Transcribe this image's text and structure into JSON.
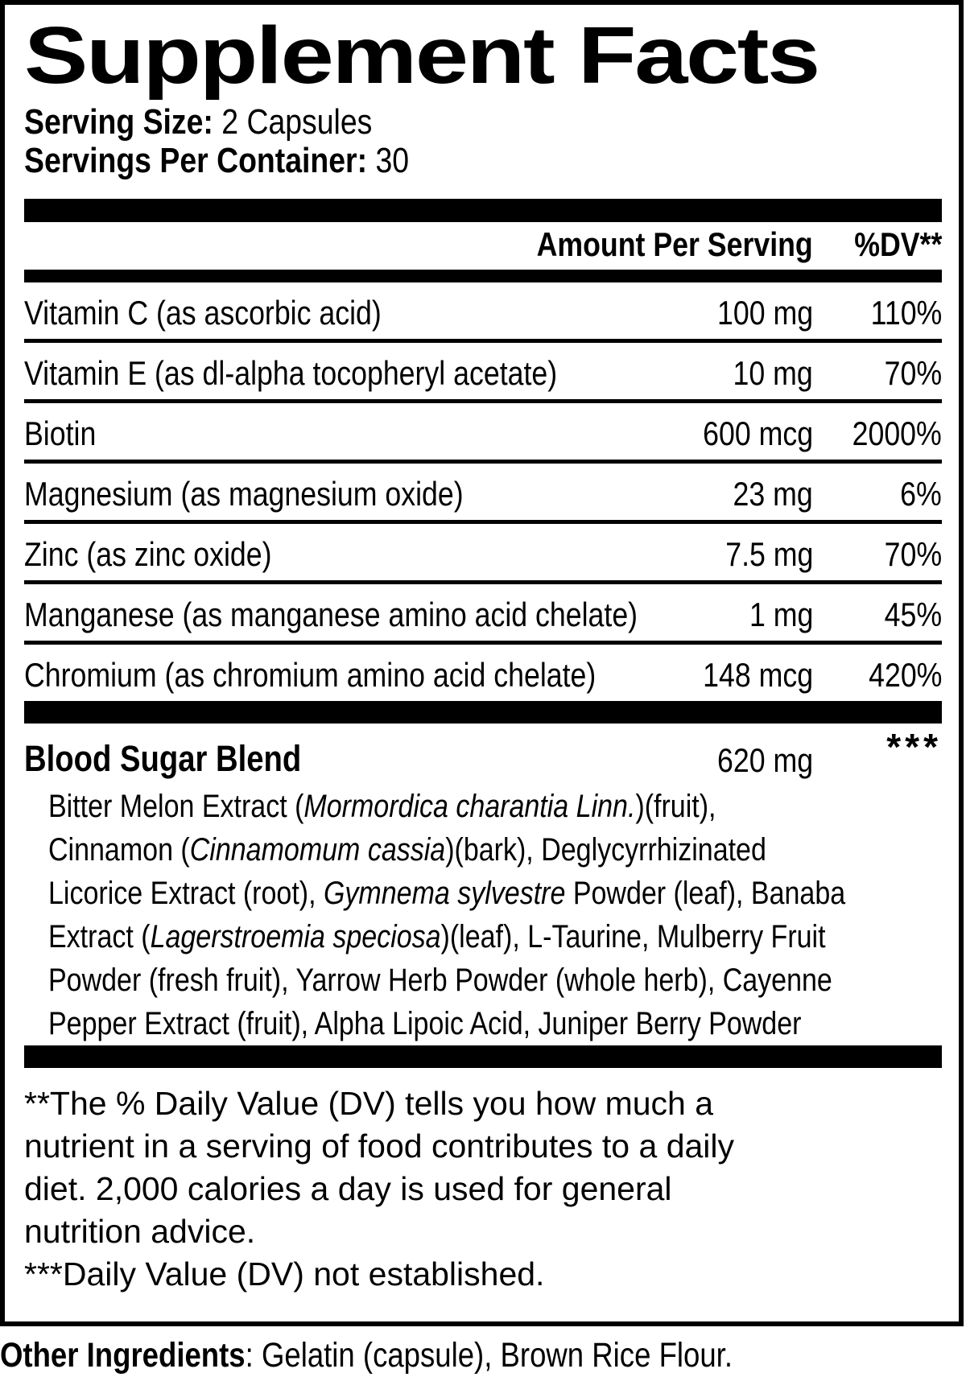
{
  "title": "Supplement Facts",
  "serving": {
    "size_label": "Serving Size:",
    "size_value": " 2 Capsules",
    "container_label": "Servings Per Container:",
    "container_value": " 30"
  },
  "table": {
    "header": {
      "amount": "Amount Per Serving",
      "dv": "%DV**"
    },
    "nutrients": [
      {
        "name": "Vitamin C (as ascorbic acid)",
        "amount": "100 mg",
        "dv": "110%"
      },
      {
        "name": "Vitamin E (as dl-alpha tocopheryl acetate)",
        "amount": "10 mg",
        "dv": "70%"
      },
      {
        "name": "Biotin",
        "amount": "600 mcg",
        "dv": "2000%"
      },
      {
        "name": "Magnesium (as magnesium oxide)",
        "amount": "23 mg",
        "dv": "6%"
      },
      {
        "name": "Zinc (as zinc oxide)",
        "amount": "7.5 mg",
        "dv": "70%"
      },
      {
        "name": "Manganese (as manganese amino acid chelate)",
        "amount": "1 mg",
        "dv": "45%"
      },
      {
        "name": "Chromium (as chromium amino acid chelate)",
        "amount": "148 mcg",
        "dv": "420%"
      }
    ],
    "blend": {
      "name": "Blood Sugar Blend",
      "amount": "620 mg",
      "dv": "***",
      "ingredient_lines": [
        [
          {
            "t": "Bitter Melon Extract ("
          },
          {
            "t": "Mormordica charantia Linn.",
            "i": true
          },
          {
            "t": ")(fruit),"
          }
        ],
        [
          {
            "t": "Cinnamon ("
          },
          {
            "t": "Cinnamomum cassia",
            "i": true
          },
          {
            "t": ")(bark), Deglycyrrhizinated"
          }
        ],
        [
          {
            "t": "Licorice Extract (root), "
          },
          {
            "t": "Gymnema sylvestre",
            "i": true
          },
          {
            "t": " Powder (leaf), Banaba"
          }
        ],
        [
          {
            "t": "Extract ("
          },
          {
            "t": "Lagerstroemia speciosa",
            "i": true
          },
          {
            "t": ")(leaf), L-Taurine, Mulberry Fruit"
          }
        ],
        [
          {
            "t": "Powder (fresh fruit), Yarrow Herb Powder (whole herb), Cayenne"
          }
        ],
        [
          {
            "t": "Pepper Extract (fruit), Alpha Lipoic Acid, Juniper Berry Powder"
          }
        ]
      ]
    }
  },
  "footnotes": [
    "**The % Daily Value (DV) tells you how much a",
    "nutrient in a serving of food contributes to a daily",
    "diet. 2,000 calories a day is used for general",
    "nutrition advice.",
    "***Daily Value (DV) not established."
  ],
  "other_ingredients": {
    "label": "Other Ingredients",
    "value": ": Gelatin (capsule), Brown Rice Flour."
  },
  "colors": {
    "text": "#000000",
    "background": "#ffffff"
  }
}
